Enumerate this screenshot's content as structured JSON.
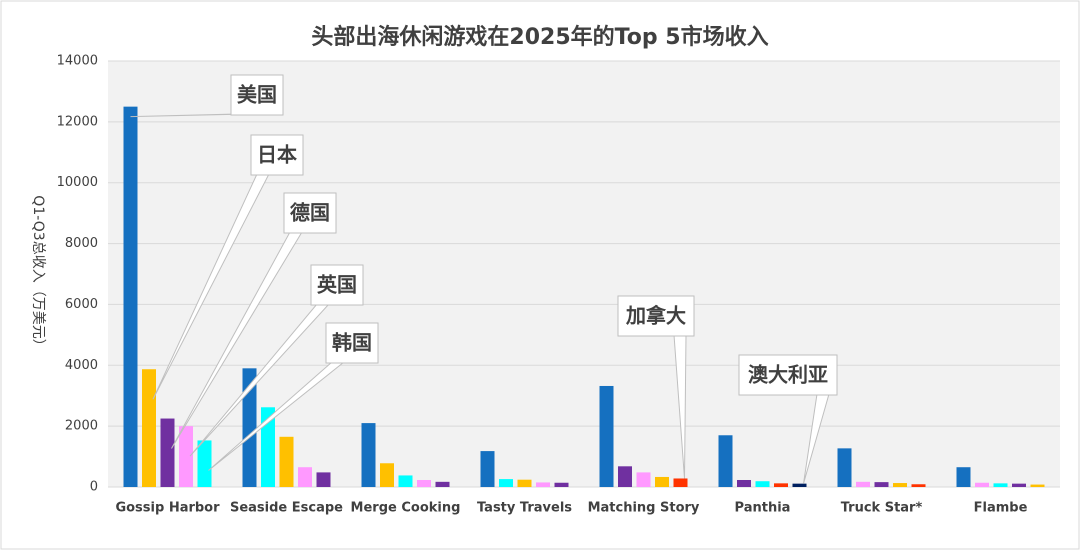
{
  "chart_data": {
    "type": "bar",
    "title": "头部出海休闲游戏在2025年的Top 5市场收入",
    "y_label": "Q1-Q3总收入（万美元）",
    "categories": [
      "Gossip Harbor",
      "Seaside Escape",
      "Merge Cooking",
      "Tasty Travels",
      "Matching Story",
      "Panthia",
      "Truck Star*",
      "Flambe"
    ],
    "series": [
      {
        "name": "美国",
        "color": "#1570c0",
        "values": [
          12500,
          3900,
          2100,
          1180,
          3320,
          1700,
          1270,
          650
        ]
      },
      {
        "name": "日本",
        "color": "#ffc000",
        "values": [
          3870,
          1650,
          780,
          240,
          330,
          null,
          130,
          80
        ]
      },
      {
        "name": "德国",
        "color": "#7030a0",
        "values": [
          2250,
          480,
          170,
          140,
          680,
          230,
          160,
          110
        ]
      },
      {
        "name": "英国",
        "color": "#ff99ff",
        "values": [
          2000,
          650,
          230,
          150,
          480,
          null,
          170,
          140
        ]
      },
      {
        "name": "韩国",
        "color": "#00ffff",
        "values": [
          1530,
          2620,
          380,
          260,
          null,
          190,
          null,
          120
        ]
      },
      {
        "name": "加拿大",
        "color": "#ff3300",
        "values": [
          null,
          null,
          null,
          null,
          280,
          120,
          90,
          null
        ]
      },
      {
        "name": "澳大利亚",
        "color": "#002060",
        "values": [
          null,
          null,
          null,
          null,
          null,
          110,
          null,
          null
        ]
      }
    ],
    "ylim": [
      0,
      14000
    ],
    "yticks": [
      0,
      2000,
      4000,
      6000,
      8000,
      10000,
      12000,
      14000
    ],
    "grid": true
  }
}
